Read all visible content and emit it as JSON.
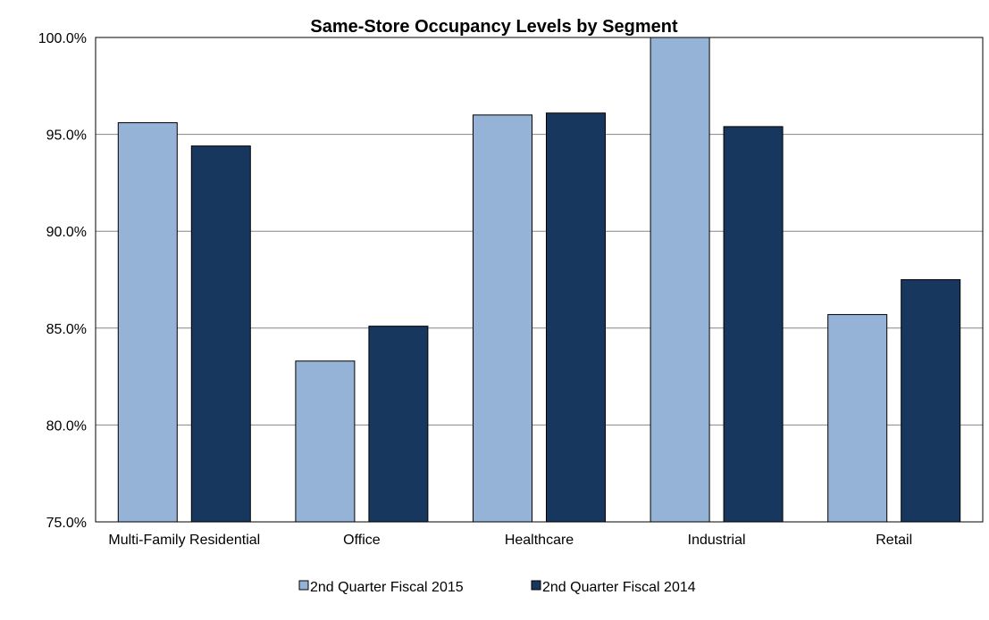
{
  "chart_data": {
    "type": "bar",
    "title": "Same-Store Occupancy Levels by Segment",
    "categories": [
      "Multi-Family Residential",
      "Office",
      "Healthcare",
      "Industrial",
      "Retail"
    ],
    "series": [
      {
        "name": "2nd Quarter Fiscal 2015",
        "values": [
          95.6,
          83.3,
          96.0,
          100.0,
          85.7
        ],
        "color": "#95B3D7"
      },
      {
        "name": "2nd Quarter Fiscal 2014",
        "values": [
          94.4,
          85.1,
          96.1,
          95.4,
          87.5
        ],
        "color": "#17375E"
      }
    ],
    "ylim": [
      75.0,
      100.0
    ],
    "yticks": [
      75.0,
      80.0,
      85.0,
      90.0,
      95.0,
      100.0
    ],
    "ytick_labels": [
      "75.0%",
      "80.0%",
      "85.0%",
      "90.0%",
      "95.0%",
      "100.0%"
    ],
    "xlabel": "",
    "ylabel": "",
    "grid": true,
    "legend_position": "bottom"
  }
}
